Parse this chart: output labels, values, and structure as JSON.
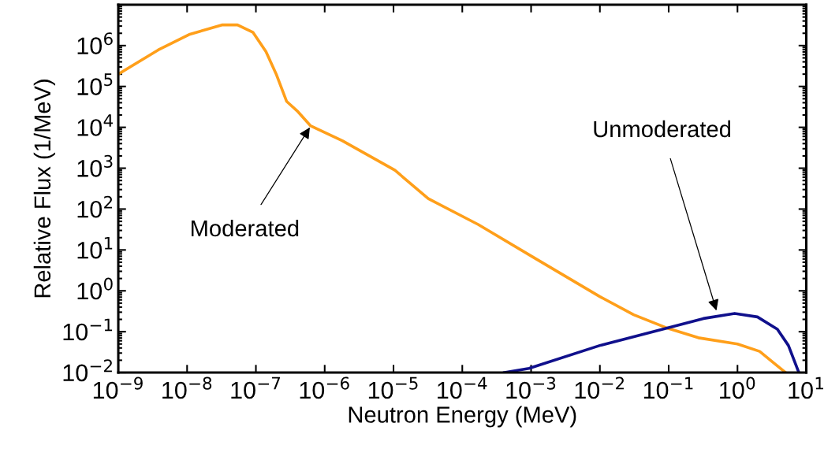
{
  "chart_data": {
    "type": "line",
    "xlabel": "Neutron Energy (MeV)",
    "ylabel": "Relative Flux (1/MeV)",
    "log": "xy",
    "grid": false,
    "legend": false,
    "marker": "none",
    "line_style": "solid",
    "xlim": [
      1e-09,
      10
    ],
    "ylim": [
      0.01,
      10000000
    ],
    "xticks": [
      {
        "value": 1e-09,
        "label": "10$^{−9}$"
      },
      {
        "value": 1e-08,
        "label": "10$^{−8}$"
      },
      {
        "value": 1e-07,
        "label": "10$^{−7}$"
      },
      {
        "value": 1e-06,
        "label": "10$^{−6}$"
      },
      {
        "value": 1e-05,
        "label": "10$^{−5}$"
      },
      {
        "value": 0.0001,
        "label": "10$^{−4}$"
      },
      {
        "value": 0.001,
        "label": "10$^{−3}$"
      },
      {
        "value": 0.01,
        "label": "10$^{−2}$"
      },
      {
        "value": 0.1,
        "label": "10$^{−1}$"
      },
      {
        "value": 1,
        "label": "10$^{0}$"
      },
      {
        "value": 10,
        "label": "10$^{1}$"
      }
    ],
    "yticks": [
      {
        "value": 0.01,
        "label": "10$^{−2}$"
      },
      {
        "value": 0.1,
        "label": "10$^{−1}$"
      },
      {
        "value": 1,
        "label": "10$^{0}$"
      },
      {
        "value": 10,
        "label": "10$^{1}$"
      },
      {
        "value": 100,
        "label": "10$^{2}$"
      },
      {
        "value": 1000,
        "label": "10$^{3}$"
      },
      {
        "value": 10000,
        "label": "10$^{4}$"
      },
      {
        "value": 100000,
        "label": "10$^{5}$"
      },
      {
        "value": 1000000,
        "label": "10$^{6}$"
      }
    ],
    "series": [
      {
        "color": "#ff9f1a",
        "x": [
          1e-09,
          3.8e-09,
          1.1e-08,
          3.2e-08,
          5.4e-08,
          9.1e-08,
          1.4e-07,
          2e-07,
          2.8e-07,
          4.1e-07,
          6.2e-07,
          1.8e-06,
          1.05e-05,
          3.2e-05,
          0.00017,
          0.00115,
          0.01,
          0.031,
          0.091,
          0.27,
          1,
          2.1,
          3.4,
          5.0
        ],
        "values": [
          200000,
          780000,
          1900000,
          3200000,
          3200000,
          2100000,
          710000,
          190000,
          43000,
          24000,
          11000,
          4700,
          890,
          180,
          42,
          6.2,
          0.72,
          0.26,
          0.126,
          0.071,
          0.05,
          0.033,
          0.017,
          0.01
        ]
      },
      {
        "color": "#10108c",
        "x": [
          0.00041,
          0.00093,
          0.01,
          0.1,
          0.32,
          0.91,
          1.95,
          3.8,
          5.5,
          7.8
        ],
        "values": [
          0.01,
          0.0126,
          0.046,
          0.126,
          0.21,
          0.28,
          0.23,
          0.115,
          0.046,
          0.01
        ]
      }
    ],
    "annotations": [
      {
        "text": "Moderated",
        "x": 6.2e-07,
        "y": 10500
      },
      {
        "text": "Unmoderated",
        "x": 0.5,
        "y": 0.31
      }
    ]
  }
}
